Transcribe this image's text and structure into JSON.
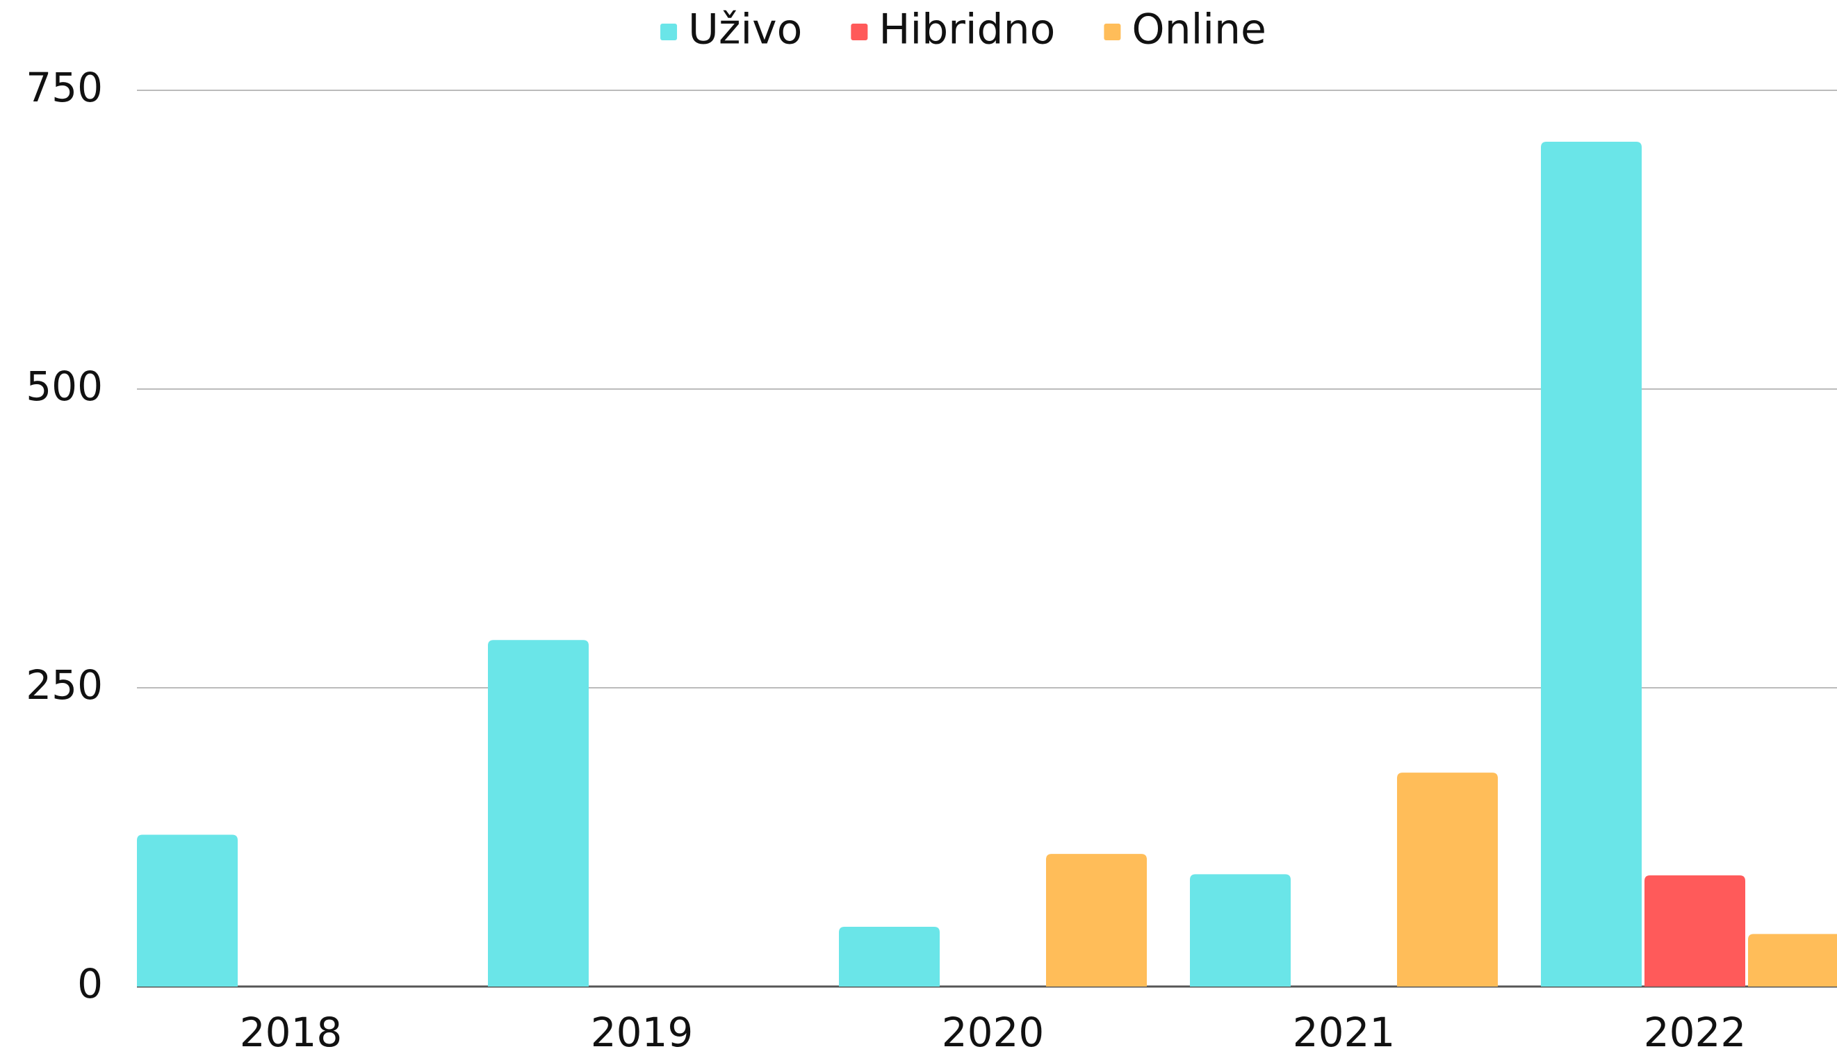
{
  "chart_data": {
    "type": "bar",
    "categories": [
      "2018",
      "2019",
      "2020",
      "2021",
      "2022"
    ],
    "series": [
      {
        "name": "Uživo",
        "color": "#6ae5e8",
        "values": [
          127,
          290,
          50,
          94,
          707
        ]
      },
      {
        "name": "Hibridno",
        "color": "#ff5a5a",
        "values": [
          0,
          0,
          0,
          0,
          93
        ]
      },
      {
        "name": "Online",
        "color": "#ffbd59",
        "values": [
          0,
          0,
          111,
          179,
          44
        ]
      }
    ],
    "ylim": [
      0,
      750
    ],
    "yticks": [
      0,
      250,
      500,
      750
    ],
    "grid": true,
    "legend": "top"
  }
}
